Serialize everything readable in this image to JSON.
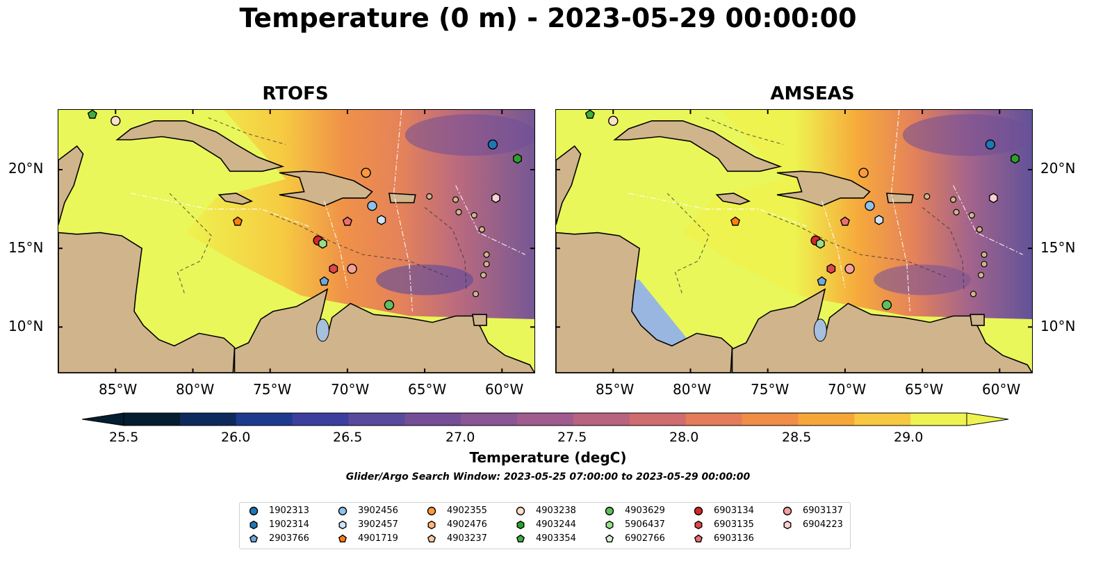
{
  "title": "Temperature (0 m) - 2023-05-29 00:00:00",
  "panels": [
    {
      "title": "RTOFS"
    },
    {
      "title": "AMSEAS"
    }
  ],
  "axes": {
    "lon_ticks": [
      "85°W",
      "80°W",
      "75°W",
      "70°W",
      "65°W",
      "60°W"
    ],
    "lat_ticks": [
      "20°N",
      "15°N",
      "10°N"
    ]
  },
  "colorbar": {
    "label": "Temperature (degC)",
    "ticks": [
      "25.5",
      "26.0",
      "26.5",
      "27.0",
      "27.5",
      "28.0",
      "28.5",
      "29.0"
    ],
    "colors": [
      "#041d2f",
      "#0e2a5c",
      "#1c3a8e",
      "#3d3f9f",
      "#5a4a9c",
      "#744f98",
      "#8a5694",
      "#a05c8e",
      "#b86380",
      "#cf6c6f",
      "#e47c5a",
      "#f08d47",
      "#f7a63a",
      "#f7c840",
      "#eef34f"
    ],
    "extend": "both"
  },
  "subtitle": "Glider/Argo Search Window: 2023-05-25 07:00:00 to 2023-05-29 00:00:00",
  "map_colors": {
    "land": "#d0b48c",
    "lake": "#a6bfdc",
    "warm_water": "#e9f75a",
    "nodata_water": "#98b6e0"
  },
  "legend": [
    {
      "label": "1902313",
      "marker": "circle",
      "color": "#1f77b4"
    },
    {
      "label": "1902314",
      "marker": "hexagon",
      "color": "#1f77b4"
    },
    {
      "label": "2903766",
      "marker": "pentagon",
      "color": "#6fa8dc"
    },
    {
      "label": "3902456",
      "marker": "circle",
      "color": "#8ec2ea"
    },
    {
      "label": "3902457",
      "marker": "hexagon",
      "color": "#cfe3f7"
    },
    {
      "label": "4901719",
      "marker": "pentagon",
      "color": "#ff7f0e"
    },
    {
      "label": "4902355",
      "marker": "circle",
      "color": "#ff9a3c"
    },
    {
      "label": "4902476",
      "marker": "hexagon",
      "color": "#ffb47a"
    },
    {
      "label": "4903237",
      "marker": "pentagon",
      "color": "#ffc9a0"
    },
    {
      "label": "4903238",
      "marker": "circle",
      "color": "#fde0c8"
    },
    {
      "label": "4903244",
      "marker": "hexagon",
      "color": "#2ca02c"
    },
    {
      "label": "4903354",
      "marker": "pentagon",
      "color": "#3fae3f"
    },
    {
      "label": "4903629",
      "marker": "circle",
      "color": "#5fbf5f"
    },
    {
      "label": "5906437",
      "marker": "hexagon",
      "color": "#98df8a"
    },
    {
      "label": "6902766",
      "marker": "pentagon",
      "color": "#d4f2cc"
    },
    {
      "label": "6903134",
      "marker": "circle",
      "color": "#d62728"
    },
    {
      "label": "6903135",
      "marker": "hexagon",
      "color": "#e04848"
    },
    {
      "label": "6903136",
      "marker": "pentagon",
      "color": "#ea7070"
    },
    {
      "label": "6903137",
      "marker": "circle",
      "color": "#f2a0a0"
    },
    {
      "label": "6904223",
      "marker": "hexagon",
      "color": "#fbd0d0"
    }
  ],
  "floats": [
    {
      "id": "1902313",
      "lon": -60.6,
      "lat": 21.6
    },
    {
      "id": "4903244",
      "lon": -59.0,
      "lat": 20.7
    },
    {
      "id": "6904223",
      "lon": -60.4,
      "lat": 18.2
    },
    {
      "id": "4902355",
      "lon": -68.8,
      "lat": 19.8
    },
    {
      "id": "3902456",
      "lon": -68.4,
      "lat": 17.7
    },
    {
      "id": "3902457",
      "lon": -67.8,
      "lat": 16.8
    },
    {
      "id": "6903136",
      "lon": -70.0,
      "lat": 16.7
    },
    {
      "id": "4901719",
      "lon": -77.1,
      "lat": 16.7
    },
    {
      "id": "6903134",
      "lon": -71.9,
      "lat": 15.5
    },
    {
      "id": "5906437",
      "lon": -71.6,
      "lat": 15.3
    },
    {
      "id": "6903135",
      "lon": -70.9,
      "lat": 13.7
    },
    {
      "id": "6903137",
      "lon": -69.7,
      "lat": 13.7
    },
    {
      "id": "2903766",
      "lon": -71.5,
      "lat": 12.9
    },
    {
      "id": "4903629",
      "lon": -67.3,
      "lat": 11.4
    },
    {
      "id": "4903238",
      "lon": -85.0,
      "lat": 23.1
    },
    {
      "id": "4903354",
      "lon": -86.5,
      "lat": 23.5
    }
  ]
}
